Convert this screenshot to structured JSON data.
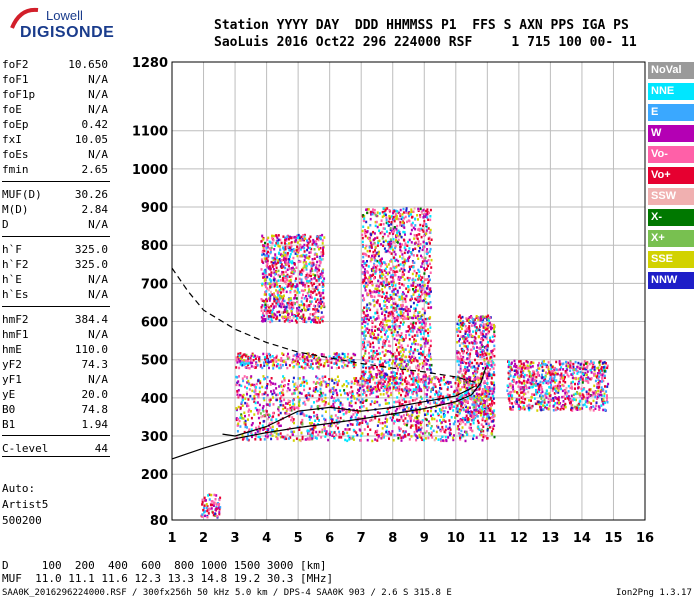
{
  "logo": {
    "line1": "Lowell",
    "line2": "DIGISONDE"
  },
  "header": {
    "line1": "Station YYYY DAY  DDD HHMMSS P1  FFS S AXN PPS IGA PS",
    "line2": "SaoLuis 2016 Oct22 296 224000 RSF     1 715 100 00- 11"
  },
  "params": [
    {
      "label": "foF2",
      "value": "10.650"
    },
    {
      "label": "foF1",
      "value": "N/A"
    },
    {
      "label": "foF1p",
      "value": "N/A"
    },
    {
      "label": "foE",
      "value": "N/A"
    },
    {
      "label": "foEp",
      "value": "0.42"
    },
    {
      "label": "fxI",
      "value": "10.05"
    },
    {
      "label": "foEs",
      "value": "N/A"
    },
    {
      "label": "fmin",
      "value": "2.65"
    },
    {
      "label": "MUF(D)",
      "value": "30.26"
    },
    {
      "label": "M(D)",
      "value": "2.84"
    },
    {
      "label": "D",
      "value": "N/A"
    },
    {
      "label": "h`F",
      "value": "325.0"
    },
    {
      "label": "h`F2",
      "value": "325.0"
    },
    {
      "label": "h`E",
      "value": "N/A"
    },
    {
      "label": "h`Es",
      "value": "N/A"
    },
    {
      "label": "hmF2",
      "value": "384.4"
    },
    {
      "label": "hmF1",
      "value": "N/A"
    },
    {
      "label": "hmE",
      "value": "110.0"
    },
    {
      "label": "yF2",
      "value": "74.3"
    },
    {
      "label": "yF1",
      "value": "N/A"
    },
    {
      "label": "yE",
      "value": "20.0"
    },
    {
      "label": "B0",
      "value": "74.8"
    },
    {
      "label": "B1",
      "value": "1.94"
    },
    {
      "label": "C-level",
      "value": "44"
    }
  ],
  "auto": {
    "l1": "Auto:",
    "l2": "Artist5",
    "l3": "500200"
  },
  "bottom": {
    "d_line": "D     100  200  400  600  800 1000 1500 3000 [km]",
    "muf_line": "MUF  11.0 11.1 11.6 12.3 13.3 14.8 19.2 30.3 [MHz]",
    "footer_left": "SAA0K_2016296224000.RSF / 300fx256h 50 kHz 5.0 km / DPS-4 SAA0K 903 / 2.6 S 315.8 E",
    "footer_right": "Ion2Png 1.3.17"
  },
  "legend": [
    {
      "label": "NoVal",
      "color": "#9a9a9a"
    },
    {
      "label": "NNE",
      "color": "#00e6ff"
    },
    {
      "label": "E",
      "color": "#3aa8ff"
    },
    {
      "label": "W",
      "color": "#b400b4"
    },
    {
      "label": "Vo-",
      "color": "#ff60a8"
    },
    {
      "label": "Vo+",
      "color": "#e60030"
    },
    {
      "label": "SSW",
      "color": "#f0b0b0"
    },
    {
      "label": "X-",
      "color": "#007800"
    },
    {
      "label": "X+",
      "color": "#78c050"
    },
    {
      "label": "SSE",
      "color": "#d2d200"
    },
    {
      "label": "NNW",
      "color": "#1e1ec8"
    }
  ],
  "chart_data": {
    "type": "scatter",
    "x_ticks": [
      1,
      2,
      3,
      4,
      5,
      6,
      7,
      8,
      9,
      10,
      11,
      12,
      13,
      14,
      15,
      16
    ],
    "y_ticks": [
      80,
      200,
      300,
      400,
      500,
      600,
      700,
      800,
      900,
      1000,
      1100,
      1280
    ],
    "xlim": [
      1,
      16
    ],
    "ylim": [
      80,
      1280
    ],
    "grid": true,
    "legend_position": "right",
    "echo_clusters": [
      {
        "xmin": 3.0,
        "xmax": 11.2,
        "ymin": 290,
        "ymax": 460
      },
      {
        "xmin": 3.0,
        "xmax": 6.8,
        "ymin": 480,
        "ymax": 520
      },
      {
        "xmin": 3.8,
        "xmax": 5.8,
        "ymin": 600,
        "ymax": 830
      },
      {
        "xmin": 7.0,
        "xmax": 9.2,
        "ymin": 420,
        "ymax": 900
      },
      {
        "xmin": 10.0,
        "xmax": 11.2,
        "ymin": 340,
        "ymax": 620
      },
      {
        "xmin": 11.6,
        "xmax": 14.8,
        "ymin": 370,
        "ymax": 500
      },
      {
        "xmin": 1.9,
        "xmax": 2.5,
        "ymin": 90,
        "ymax": 150
      }
    ],
    "virtual_height_curve": [
      [
        1.0,
        240
      ],
      [
        2.0,
        268
      ],
      [
        3.0,
        293
      ],
      [
        4.0,
        309
      ],
      [
        5.0,
        322
      ],
      [
        6.0,
        333
      ],
      [
        7.0,
        345
      ],
      [
        8.0,
        358
      ],
      [
        9.0,
        372
      ],
      [
        10.0,
        390
      ],
      [
        10.5,
        408
      ],
      [
        10.8,
        440
      ],
      [
        10.95,
        480
      ]
    ],
    "lower_trace": [
      [
        2.6,
        305
      ],
      [
        3.0,
        300
      ],
      [
        4.0,
        325
      ],
      [
        5.0,
        365
      ],
      [
        6.0,
        375
      ],
      [
        7.0,
        365
      ],
      [
        8.0,
        375
      ],
      [
        9.0,
        390
      ],
      [
        10.0,
        405
      ],
      [
        10.6,
        430
      ]
    ],
    "dashed_profile": [
      [
        1.0,
        740
      ],
      [
        1.5,
        680
      ],
      [
        2.0,
        630
      ],
      [
        3.0,
        580
      ],
      [
        4.0,
        545
      ],
      [
        5.0,
        520
      ],
      [
        6.0,
        505
      ],
      [
        7.0,
        490
      ],
      [
        8.0,
        478
      ],
      [
        9.0,
        468
      ],
      [
        10.0,
        455
      ],
      [
        10.65,
        440
      ]
    ]
  }
}
